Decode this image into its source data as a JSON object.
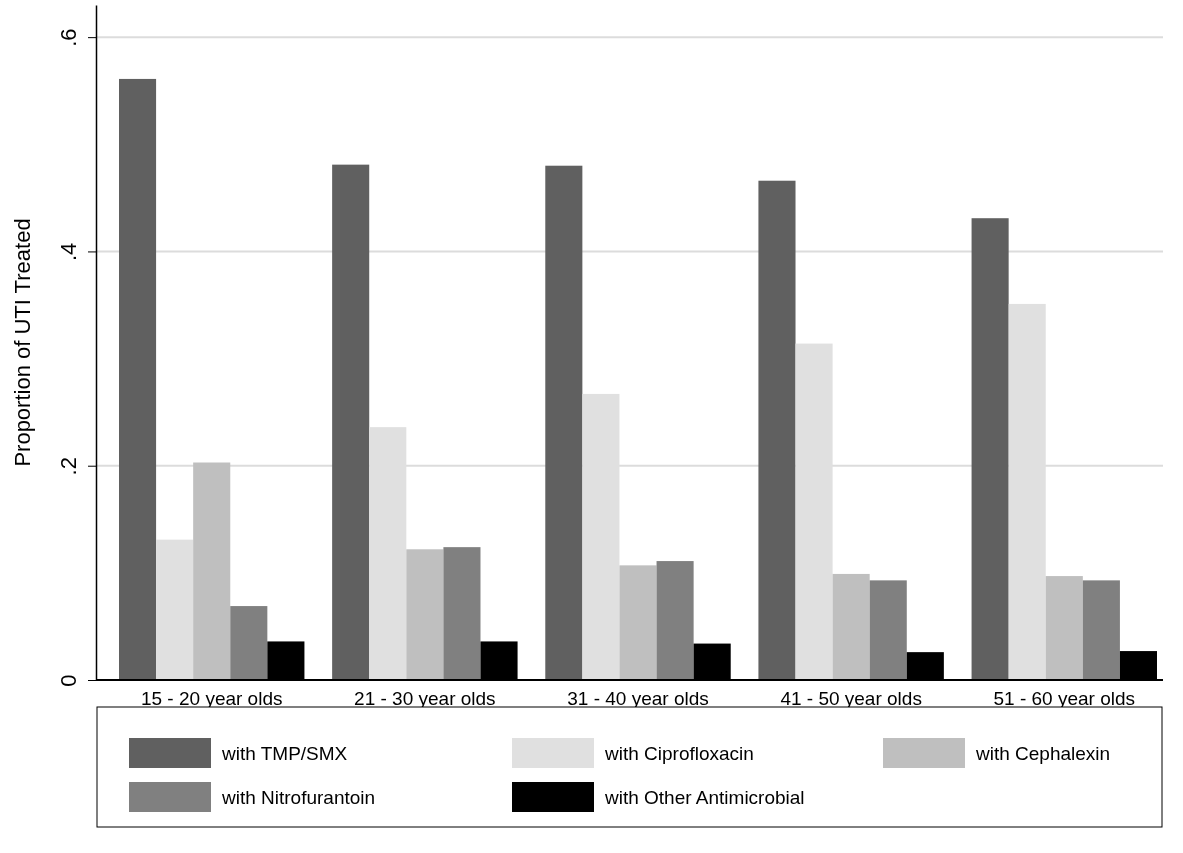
{
  "chart_data": {
    "type": "bar",
    "ylabel": "Proportion of UTI Treated",
    "categories": [
      "15 - 20 year olds",
      "21 - 30 year olds",
      "31 - 40 year olds",
      "41 - 50 year olds",
      "51 - 60 year olds"
    ],
    "series": [
      {
        "name": "with TMP/SMX",
        "color": "#606060",
        "values": [
          0.561,
          0.481,
          0.48,
          0.466,
          0.431
        ]
      },
      {
        "name": "with Ciprofloxacin",
        "color": "#e0e0e0",
        "values": [
          0.131,
          0.236,
          0.267,
          0.314,
          0.351
        ]
      },
      {
        "name": "with Cephalexin",
        "color": "#bfbfbf",
        "values": [
          0.203,
          0.122,
          0.107,
          0.099,
          0.097
        ]
      },
      {
        "name": "with Nitrofurantoin",
        "color": "#808080",
        "values": [
          0.069,
          0.124,
          0.111,
          0.093,
          0.093
        ]
      },
      {
        "name": "with Other Antimicrobial",
        "color": "#000000",
        "values": [
          0.036,
          0.036,
          0.034,
          0.026,
          0.027
        ]
      }
    ],
    "ylim": [
      0,
      0.63
    ],
    "yticks": [
      {
        "value": 0,
        "label": "0"
      },
      {
        "value": 0.2,
        "label": ".2"
      },
      {
        "value": 0.4,
        "label": ".4"
      },
      {
        "value": 0.6,
        "label": ".6"
      }
    ],
    "grid": "y",
    "legend": "bottom"
  }
}
